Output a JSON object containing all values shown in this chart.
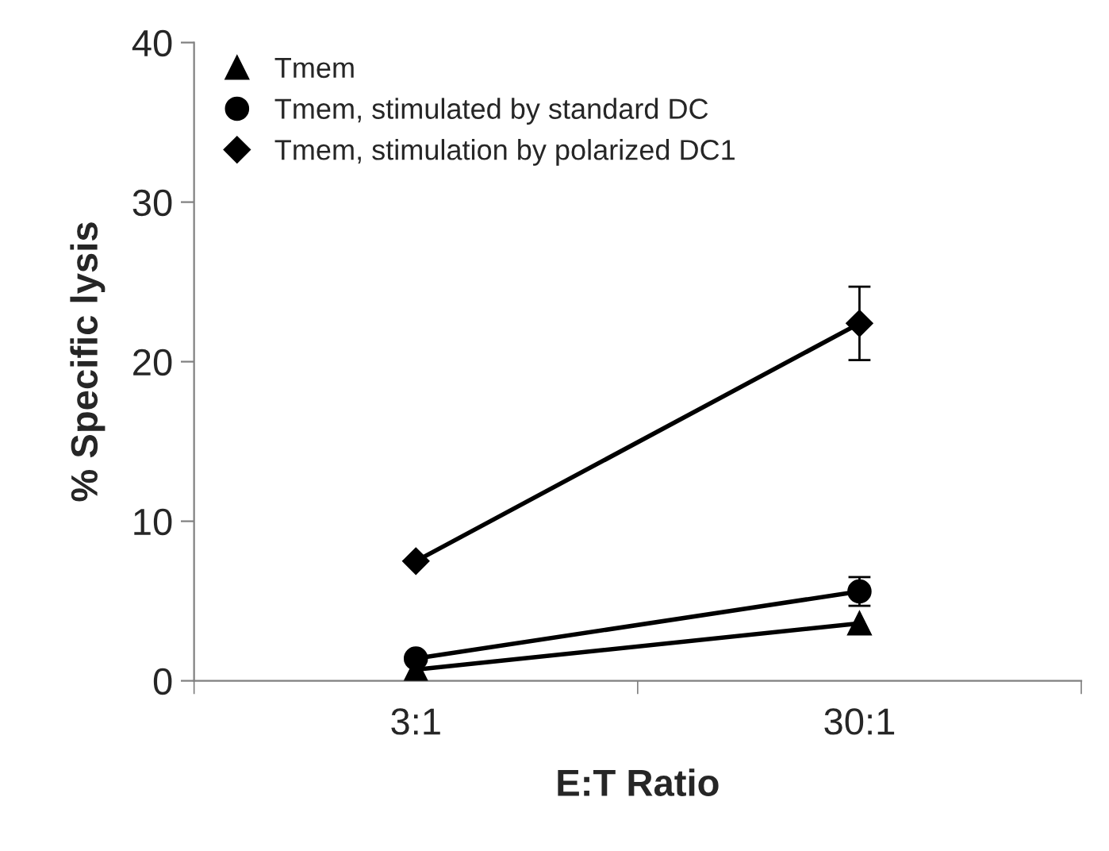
{
  "chart_data": {
    "type": "line",
    "xlabel": "E:T Ratio",
    "ylabel": "% Specific lysis",
    "categories": [
      "3:1",
      "30:1"
    ],
    "series": [
      {
        "name": "Tmem",
        "color": "#000000",
        "marker": "triangle",
        "values": [
          0.7,
          3.6
        ]
      },
      {
        "name": "Tmem, stimulated by standard DC",
        "color": "#000000",
        "marker": "circle",
        "values": [
          1.4,
          5.6
        ],
        "errors": [
          null,
          0.9
        ]
      },
      {
        "name": "Tmem, stimulation by polarized DC1",
        "color": "#000000",
        "marker": "diamond",
        "values": [
          7.5,
          22.4
        ],
        "errors": [
          null,
          2.3
        ]
      }
    ],
    "ylim": [
      0,
      40
    ],
    "yticks": [
      0,
      10,
      20,
      30,
      40
    ],
    "grid": false,
    "legend": "top left",
    "line_style": "solid"
  }
}
